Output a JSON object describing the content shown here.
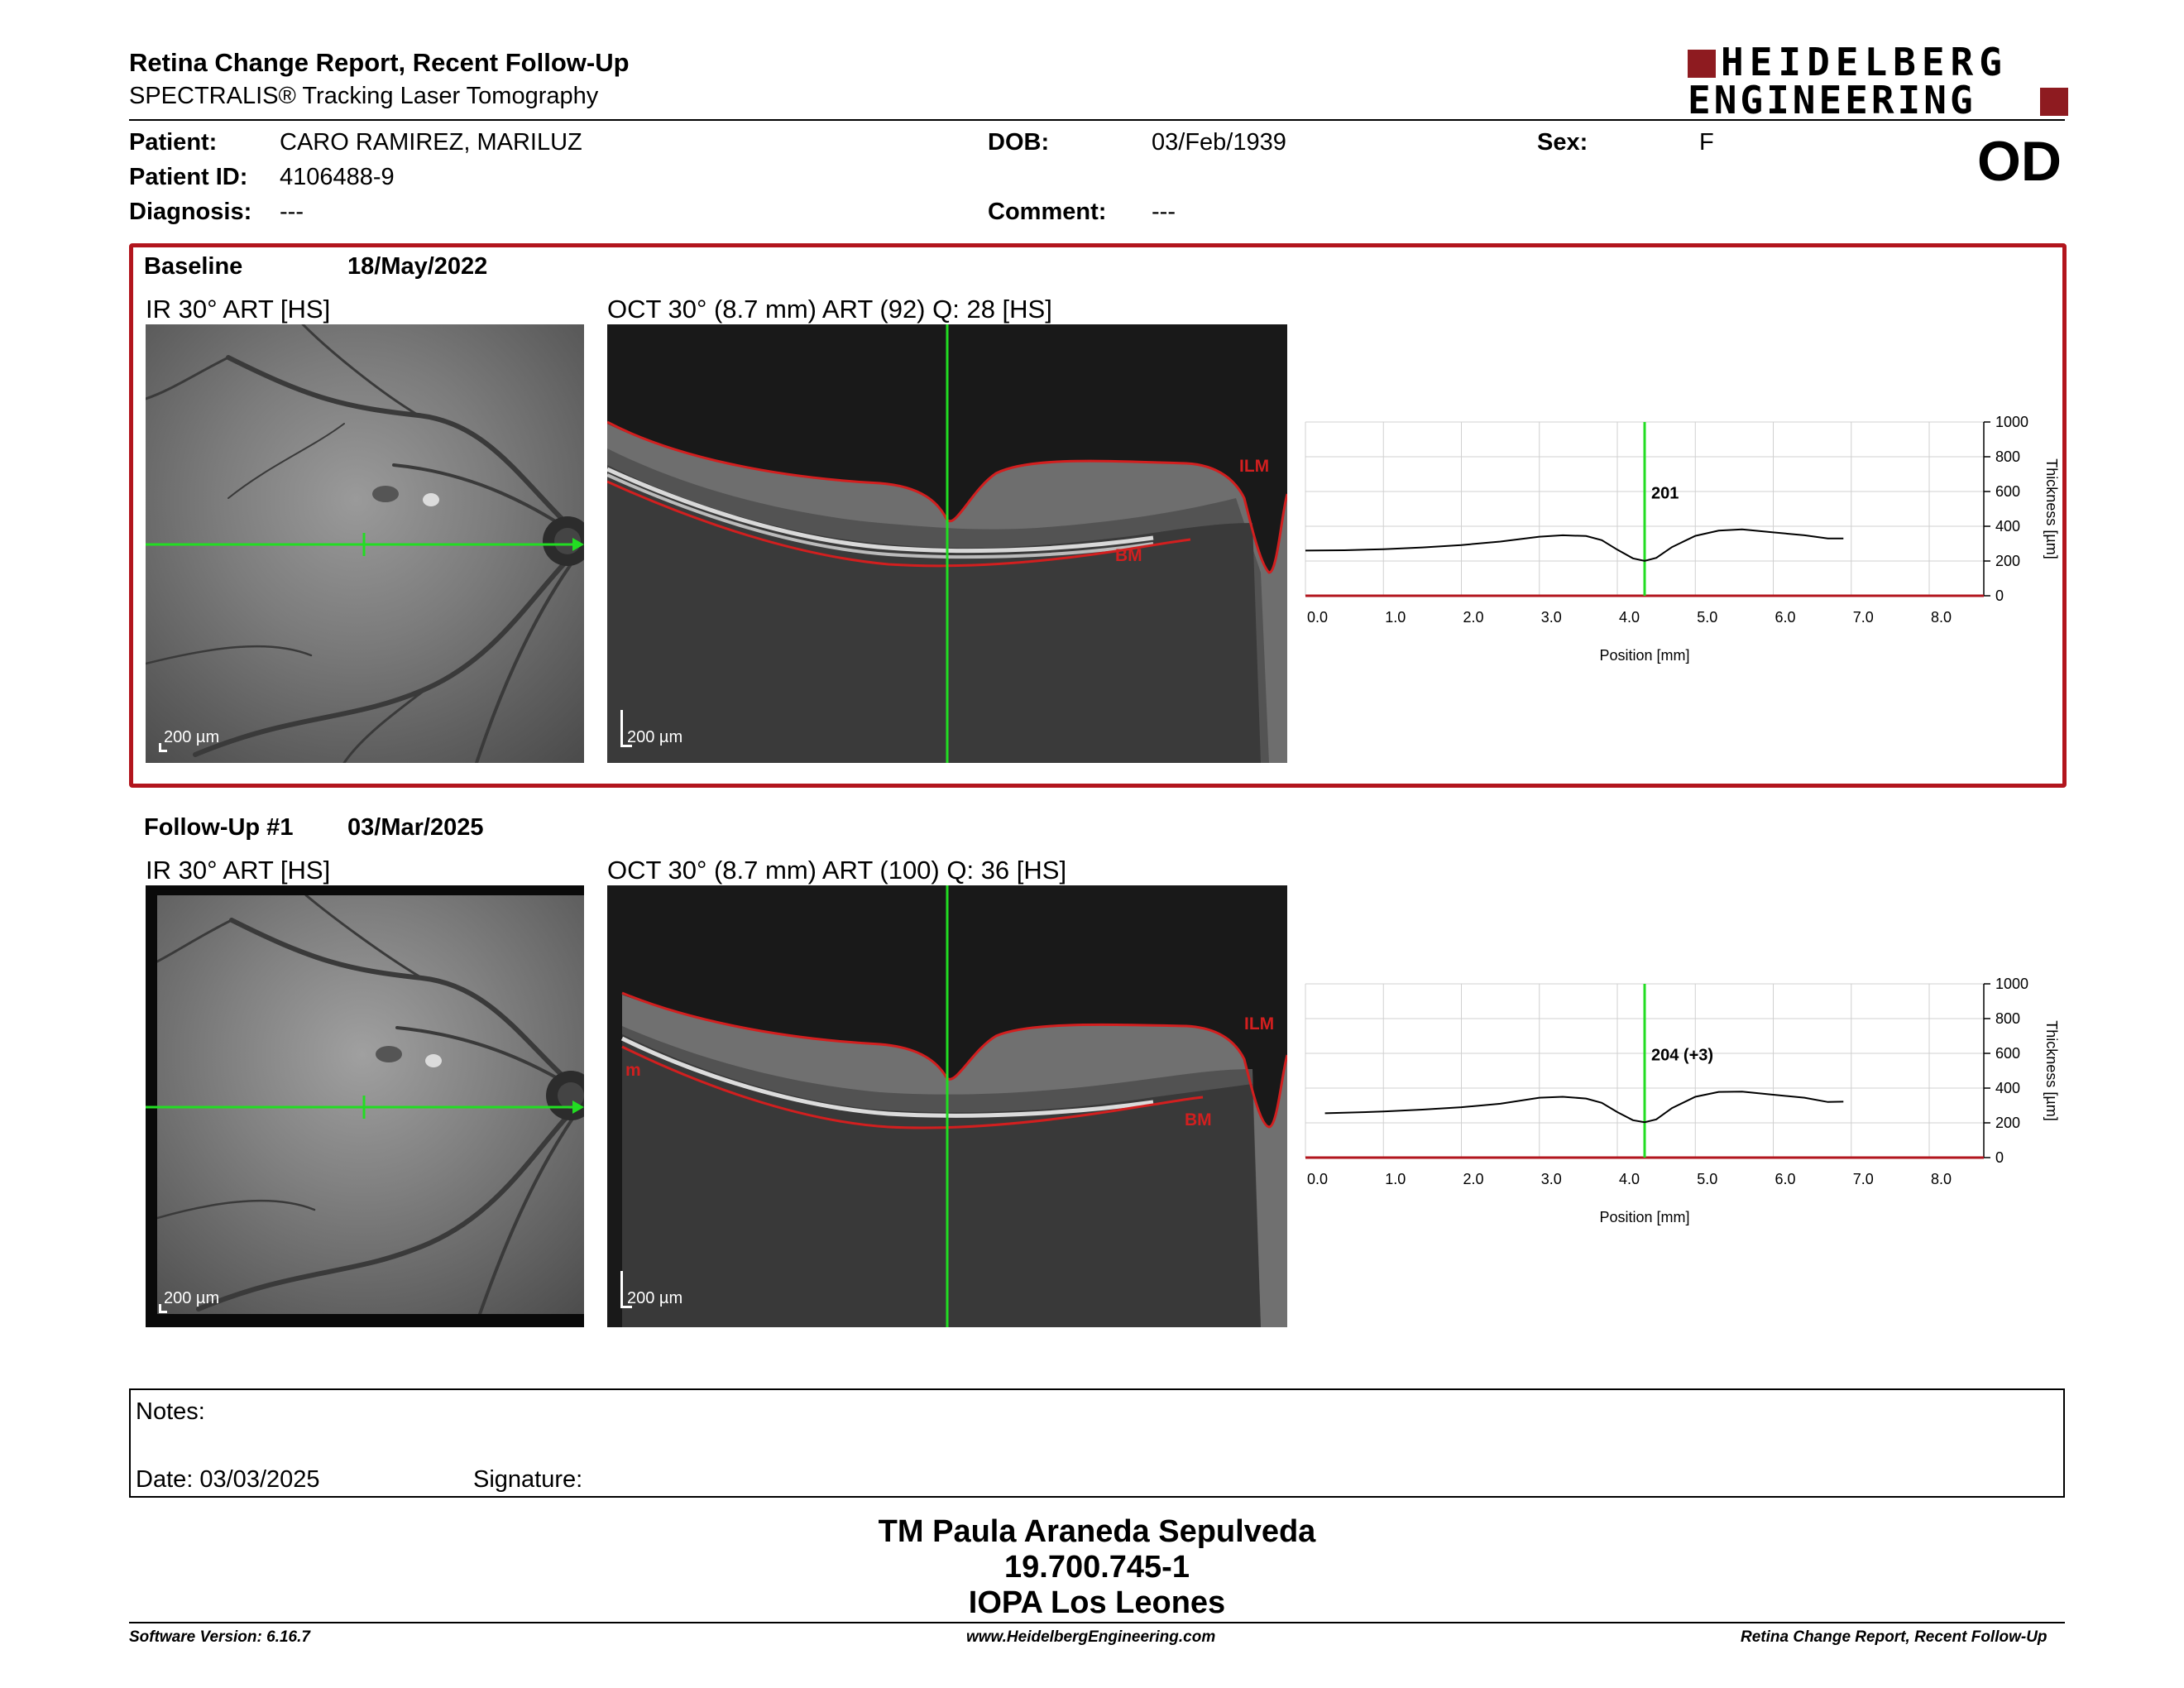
{
  "header": {
    "title": "Retina Change Report, Recent Follow-Up",
    "subtitle": "SPECTRALIS® Tracking Laser Tomography",
    "logo_line1": "HEIDELBERG",
    "logo_line2": "ENGINEERING",
    "eye": "OD"
  },
  "patient": {
    "patient_label": "Patient:",
    "patient": "CARO RAMIREZ, MARILUZ",
    "id_label": "Patient ID:",
    "id": "4106488-9",
    "diagnosis_label": "Diagnosis:",
    "diagnosis": "---",
    "dob_label": "DOB:",
    "dob": "03/Feb/1939",
    "comment_label": "Comment:",
    "comment": "---",
    "sex_label": "Sex:",
    "sex": "F"
  },
  "baseline": {
    "label": "Baseline",
    "date": "18/May/2022",
    "ir_title": "IR 30° ART [HS]",
    "oct_title": "OCT 30° (8.7 mm) ART (92) Q: 28 [HS]",
    "scale": "200 µm",
    "ilm": "ILM",
    "bm": "BM",
    "center_value": "201"
  },
  "followup": {
    "label": "Follow-Up #1",
    "date": "03/Mar/2025",
    "ir_title": "IR 30° ART [HS]",
    "oct_title": "OCT 30° (8.7 mm) ART (100) Q: 36 [HS]",
    "scale": "200 µm",
    "ilm": "ILM",
    "bm": "BM",
    "m": "m",
    "center_value": "204 (+3)"
  },
  "chart_data": [
    {
      "type": "line",
      "title": "",
      "xlabel": "Position [mm]",
      "ylabel": "Thickness [µm]",
      "xlim": [
        0,
        8.7
      ],
      "ylim": [
        0,
        1000
      ],
      "xticks": [
        "0.0",
        "1.0",
        "2.0",
        "3.0",
        "4.0",
        "5.0",
        "6.0",
        "7.0",
        "8.0"
      ],
      "yticks": [
        "0",
        "200",
        "400",
        "600",
        "800",
        "1000"
      ],
      "marker_x": 4.35,
      "annotation": "201",
      "grid": true,
      "x": [
        0.0,
        0.5,
        1.0,
        1.5,
        2.0,
        2.5,
        3.0,
        3.3,
        3.6,
        3.8,
        4.0,
        4.2,
        4.35,
        4.5,
        4.7,
        5.0,
        5.3,
        5.6,
        6.0,
        6.4,
        6.7,
        6.9
      ],
      "y": [
        260,
        262,
        268,
        278,
        292,
        312,
        340,
        348,
        344,
        320,
        265,
        215,
        201,
        218,
        280,
        345,
        375,
        382,
        365,
        348,
        330,
        330
      ]
    },
    {
      "type": "line",
      "title": "",
      "xlabel": "Position [mm]",
      "ylabel": "Thickness [µm]",
      "xlim": [
        0,
        8.7
      ],
      "ylim": [
        0,
        1000
      ],
      "xticks": [
        "0.0",
        "1.0",
        "2.0",
        "3.0",
        "4.0",
        "5.0",
        "6.0",
        "7.0",
        "8.0"
      ],
      "yticks": [
        "0",
        "200",
        "400",
        "600",
        "800",
        "1000"
      ],
      "marker_x": 4.35,
      "annotation": "204 (+3)",
      "grid": true,
      "x": [
        0.25,
        0.5,
        1.0,
        1.5,
        2.0,
        2.5,
        3.0,
        3.3,
        3.6,
        3.8,
        4.0,
        4.2,
        4.35,
        4.5,
        4.7,
        5.0,
        5.3,
        5.6,
        6.0,
        6.4,
        6.7,
        6.9
      ],
      "y": [
        255,
        258,
        265,
        276,
        290,
        310,
        345,
        350,
        340,
        315,
        262,
        215,
        204,
        220,
        285,
        350,
        378,
        380,
        362,
        345,
        320,
        322
      ]
    }
  ],
  "notes": {
    "notes_label": "Notes:",
    "date_label": "Date: 03/03/2025",
    "signature_label": "Signature:"
  },
  "signature": {
    "line1": "TM Paula Araneda Sepulveda",
    "line2": "19.700.745-1",
    "line3": "IOPA Los Leones"
  },
  "footer": {
    "software": "Software Version: 6.16.7",
    "website": "www.HeidelbergEngineering.com",
    "report": "Retina Change Report, Recent Follow-Up"
  },
  "colors": {
    "accent": "#b2151d",
    "marker": "#22dd22",
    "segment": "#d21f1f"
  }
}
